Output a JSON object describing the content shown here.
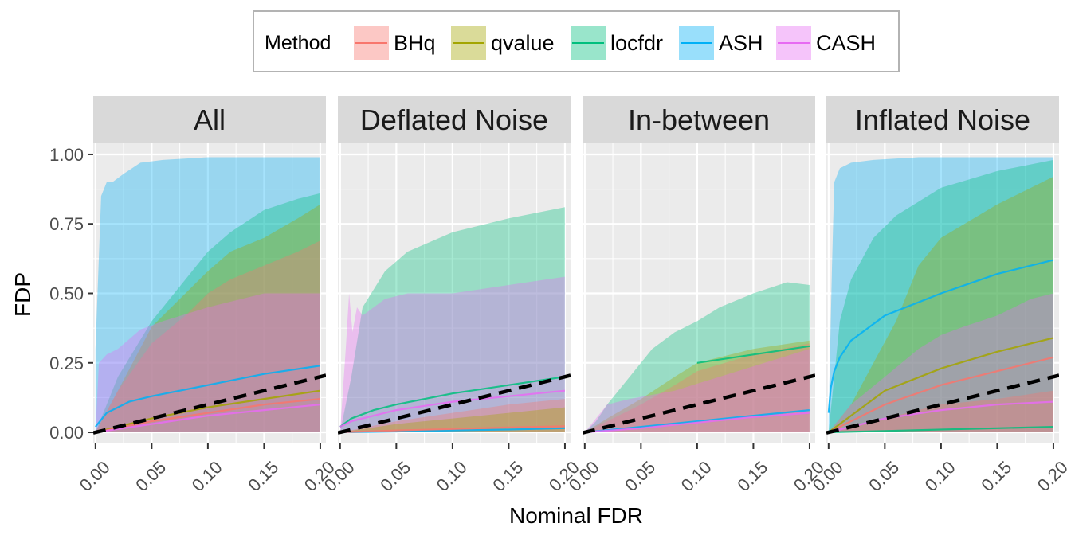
{
  "chart_data": {
    "type": "area",
    "xlabel": "Nominal FDR",
    "ylabel": "FDP",
    "xlim": [
      -0.002,
      0.205
    ],
    "ylim": [
      -0.04,
      1.04
    ],
    "x_ticks": [
      "0.00",
      "0.05",
      "0.10",
      "0.15",
      "0.20"
    ],
    "x_tick_values": [
      0,
      0.05,
      0.1,
      0.15,
      0.2
    ],
    "y_ticks": [
      "0.00",
      "0.25",
      "0.50",
      "0.75",
      "1.00"
    ],
    "y_tick_values": [
      0,
      0.25,
      0.5,
      0.75,
      1.0
    ],
    "grid": true,
    "reference_line": {
      "style": "dashed",
      "color": "#000000",
      "slope": 1,
      "intercept": 0
    },
    "legend": {
      "title": "Method",
      "position": "top",
      "items": [
        {
          "label": "BHq",
          "color": "#F8766D"
        },
        {
          "label": "qvalue",
          "color": "#A3A500"
        },
        {
          "label": "locfdr",
          "color": "#00BF7D"
        },
        {
          "label": "ASH",
          "color": "#00B0F6"
        },
        {
          "label": "CASH",
          "color": "#E76BF3"
        }
      ]
    },
    "panels": [
      {
        "title": "All",
        "bands": [
          {
            "method": "ASH",
            "x": [
              0,
              0.005,
              0.01,
              0.015,
              0.025,
              0.04,
              0.06,
              0.1,
              0.2
            ],
            "upper": [
              0.3,
              0.85,
              0.9,
              0.9,
              0.93,
              0.97,
              0.98,
              0.99,
              0.99
            ],
            "lower": [
              0,
              0,
              0,
              0,
              0,
              0,
              0,
              0,
              0
            ]
          },
          {
            "method": "locfdr",
            "x": [
              0,
              0.02,
              0.05,
              0.08,
              0.1,
              0.12,
              0.15,
              0.18,
              0.2
            ],
            "upper": [
              0,
              0.2,
              0.4,
              0.55,
              0.65,
              0.72,
              0.8,
              0.84,
              0.86
            ],
            "lower": [
              0,
              0,
              0,
              0,
              0,
              0,
              0,
              0,
              0
            ]
          },
          {
            "method": "qvalue",
            "x": [
              0,
              0.02,
              0.05,
              0.08,
              0.1,
              0.12,
              0.15,
              0.18,
              0.2
            ],
            "upper": [
              0,
              0.15,
              0.38,
              0.5,
              0.58,
              0.65,
              0.7,
              0.77,
              0.82
            ],
            "lower": [
              0,
              0,
              0,
              0,
              0,
              0,
              0,
              0,
              0
            ]
          },
          {
            "method": "BHq",
            "x": [
              0,
              0.02,
              0.05,
              0.08,
              0.1,
              0.12,
              0.15,
              0.18,
              0.2
            ],
            "upper": [
              0,
              0.15,
              0.32,
              0.42,
              0.5,
              0.55,
              0.6,
              0.65,
              0.69
            ],
            "lower": [
              0,
              0,
              0,
              0,
              0,
              0,
              0,
              0,
              0
            ]
          },
          {
            "method": "CASH",
            "x": [
              0,
              0.003,
              0.01,
              0.02,
              0.04,
              0.06,
              0.1,
              0.15,
              0.2
            ],
            "upper": [
              0,
              0.25,
              0.28,
              0.3,
              0.37,
              0.4,
              0.45,
              0.5,
              0.5
            ],
            "lower": [
              0,
              0,
              0,
              0,
              0,
              0,
              0,
              0,
              0
            ]
          }
        ],
        "lines": [
          {
            "method": "ASH",
            "x": [
              0,
              0.01,
              0.03,
              0.05,
              0.1,
              0.15,
              0.2
            ],
            "y": [
              0.02,
              0.07,
              0.11,
              0.13,
              0.17,
              0.21,
              0.24
            ]
          },
          {
            "method": "qvalue",
            "x": [
              0,
              0.05,
              0.1,
              0.15,
              0.2
            ],
            "y": [
              0,
              0.05,
              0.09,
              0.12,
              0.15
            ]
          },
          {
            "method": "BHq",
            "x": [
              0,
              0.05,
              0.1,
              0.15,
              0.2
            ],
            "y": [
              0,
              0.04,
              0.07,
              0.1,
              0.12
            ]
          },
          {
            "method": "CASH",
            "x": [
              0,
              0.05,
              0.1,
              0.15,
              0.2
            ],
            "y": [
              0,
              0.03,
              0.06,
              0.08,
              0.1
            ]
          }
        ]
      },
      {
        "title": "Deflated Noise",
        "bands": [
          {
            "method": "locfdr",
            "x": [
              0,
              0.01,
              0.02,
              0.04,
              0.06,
              0.1,
              0.15,
              0.2
            ],
            "upper": [
              0,
              0.2,
              0.45,
              0.58,
              0.65,
              0.72,
              0.77,
              0.81
            ],
            "lower": [
              0,
              0,
              0,
              0,
              0,
              0,
              0,
              0
            ]
          },
          {
            "method": "CASH",
            "x": [
              0,
              0.005,
              0.008,
              0.011,
              0.015,
              0.02,
              0.04,
              0.06,
              0.1,
              0.15,
              0.2
            ],
            "upper": [
              0,
              0.3,
              0.5,
              0.36,
              0.45,
              0.42,
              0.48,
              0.5,
              0.5,
              0.53,
              0.56
            ],
            "lower": [
              0,
              0,
              0,
              0,
              0,
              0,
              0,
              0,
              0,
              0,
              0
            ]
          },
          {
            "method": "BHq",
            "x": [
              0,
              0.05,
              0.1,
              0.15,
              0.2
            ],
            "upper": [
              0,
              0.04,
              0.07,
              0.1,
              0.12
            ],
            "lower": [
              0,
              0,
              0,
              0,
              0
            ]
          },
          {
            "method": "qvalue",
            "x": [
              0,
              0.05,
              0.1,
              0.15,
              0.2
            ],
            "upper": [
              0,
              0.03,
              0.05,
              0.07,
              0.09
            ],
            "lower": [
              0,
              0,
              0,
              0,
              0
            ]
          }
        ],
        "lines": [
          {
            "method": "locfdr",
            "x": [
              0,
              0.01,
              0.03,
              0.05,
              0.1,
              0.15,
              0.2
            ],
            "y": [
              0.02,
              0.05,
              0.08,
              0.1,
              0.14,
              0.17,
              0.2
            ]
          },
          {
            "method": "CASH",
            "x": [
              0,
              0.01,
              0.03,
              0.05,
              0.1,
              0.15,
              0.2
            ],
            "y": [
              0.02,
              0.04,
              0.06,
              0.08,
              0.11,
              0.13,
              0.15
            ]
          },
          {
            "method": "ASH",
            "x": [
              0,
              0.05,
              0.1,
              0.15,
              0.2
            ],
            "y": [
              0,
              0.003,
              0.007,
              0.01,
              0.015
            ]
          },
          {
            "method": "BHq",
            "x": [
              0,
              0.05,
              0.1,
              0.15,
              0.2
            ],
            "y": [
              0,
              0.007,
              0.012,
              0.018,
              0.022
            ]
          }
        ]
      },
      {
        "title": "In-between",
        "bands": [
          {
            "method": "locfdr",
            "x": [
              0,
              0.01,
              0.02,
              0.04,
              0.06,
              0.08,
              0.1,
              0.12,
              0.15,
              0.18,
              0.2
            ],
            "upper": [
              0,
              0.04,
              0.1,
              0.2,
              0.3,
              0.36,
              0.4,
              0.45,
              0.5,
              0.54,
              0.53
            ],
            "lower": [
              0,
              0,
              0,
              0,
              0,
              0,
              0,
              0,
              0,
              0,
              0
            ]
          },
          {
            "method": "qvalue",
            "x": [
              0,
              0.02,
              0.05,
              0.08,
              0.1,
              0.15,
              0.2
            ],
            "upper": [
              0,
              0.05,
              0.12,
              0.2,
              0.25,
              0.3,
              0.33
            ],
            "lower": [
              0,
              0,
              0,
              0,
              0,
              0,
              0
            ]
          },
          {
            "method": "BHq",
            "x": [
              0,
              0.02,
              0.05,
              0.08,
              0.1,
              0.15,
              0.2
            ],
            "upper": [
              0,
              0.04,
              0.1,
              0.17,
              0.22,
              0.28,
              0.32
            ],
            "lower": [
              0,
              0,
              0,
              0,
              0,
              0,
              0
            ]
          },
          {
            "method": "CASH",
            "x": [
              0,
              0.02,
              0.04,
              0.08,
              0.12,
              0.16,
              0.2
            ],
            "upper": [
              0,
              0.1,
              0.12,
              0.15,
              0.2,
              0.25,
              0.3
            ],
            "lower": [
              0,
              0,
              0,
              0,
              0,
              0,
              0
            ]
          }
        ],
        "lines": [
          {
            "method": "ASH",
            "x": [
              0,
              0.05,
              0.1,
              0.15,
              0.2
            ],
            "y": [
              0,
              0.02,
              0.04,
              0.06,
              0.08
            ]
          },
          {
            "method": "CASH",
            "x": [
              0,
              0.05,
              0.1,
              0.15,
              0.2
            ],
            "y": [
              0,
              0.015,
              0.035,
              0.055,
              0.07
            ]
          },
          {
            "method": "locfdr",
            "x": [
              0.1,
              0.15,
              0.2
            ],
            "y": [
              0.25,
              0.28,
              0.31
            ]
          }
        ]
      },
      {
        "title": "Inflated Noise",
        "bands": [
          {
            "method": "ASH",
            "x": [
              0,
              0.003,
              0.005,
              0.01,
              0.02,
              0.04,
              0.08,
              0.2
            ],
            "upper": [
              0.05,
              0.6,
              0.9,
              0.95,
              0.97,
              0.98,
              0.99,
              0.99
            ],
            "lower": [
              0,
              0,
              0,
              0,
              0,
              0,
              0,
              0
            ]
          },
          {
            "method": "locfdr",
            "x": [
              0,
              0.005,
              0.01,
              0.02,
              0.04,
              0.06,
              0.1,
              0.15,
              0.2
            ],
            "upper": [
              0,
              0.2,
              0.4,
              0.55,
              0.7,
              0.78,
              0.88,
              0.94,
              0.98
            ],
            "lower": [
              0,
              0,
              0,
              0,
              0,
              0,
              0,
              0,
              0
            ]
          },
          {
            "method": "qvalue",
            "x": [
              0,
              0.02,
              0.04,
              0.06,
              0.08,
              0.1,
              0.15,
              0.2
            ],
            "upper": [
              0,
              0.1,
              0.25,
              0.4,
              0.6,
              0.7,
              0.82,
              0.92
            ],
            "lower": [
              0,
              0,
              0,
              0,
              0,
              0,
              0,
              0
            ]
          },
          {
            "method": "CASH",
            "x": [
              0,
              0.02,
              0.05,
              0.08,
              0.1,
              0.12,
              0.15,
              0.18,
              0.2
            ],
            "upper": [
              0,
              0.1,
              0.2,
              0.3,
              0.35,
              0.38,
              0.42,
              0.48,
              0.5
            ],
            "lower": [
              0,
              0,
              0,
              0,
              0,
              0,
              0,
              0,
              0
            ]
          },
          {
            "method": "BHq",
            "x": [
              0,
              0.05,
              0.1,
              0.15,
              0.2
            ],
            "upper": [
              0,
              0.05,
              0.1,
              0.12,
              0.15
            ],
            "lower": [
              0,
              0,
              0,
              0,
              0
            ]
          }
        ],
        "lines": [
          {
            "method": "ASH",
            "x": [
              0,
              0.002,
              0.005,
              0.01,
              0.02,
              0.05,
              0.1,
              0.15,
              0.2
            ],
            "y": [
              0.07,
              0.16,
              0.22,
              0.27,
              0.33,
              0.42,
              0.5,
              0.57,
              0.62
            ]
          },
          {
            "method": "qvalue",
            "x": [
              0,
              0.05,
              0.1,
              0.15,
              0.2
            ],
            "y": [
              0,
              0.15,
              0.23,
              0.29,
              0.34
            ]
          },
          {
            "method": "BHq",
            "x": [
              0,
              0.05,
              0.1,
              0.15,
              0.2
            ],
            "y": [
              0,
              0.1,
              0.17,
              0.22,
              0.27
            ]
          },
          {
            "method": "CASH",
            "x": [
              0,
              0.05,
              0.1,
              0.15,
              0.2
            ],
            "y": [
              0,
              0.05,
              0.08,
              0.1,
              0.11
            ]
          },
          {
            "method": "locfdr",
            "x": [
              0,
              0.05,
              0.1,
              0.15,
              0.2
            ],
            "y": [
              0,
              0.005,
              0.01,
              0.015,
              0.02
            ]
          }
        ]
      }
    ]
  }
}
